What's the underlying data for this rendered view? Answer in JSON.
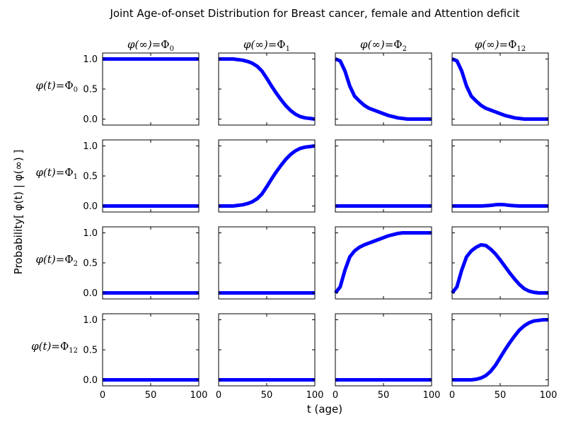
{
  "chart_data": {
    "type": "line",
    "title": "Joint Age-of-onset Distribution for Breast cancer, female and Attention deficit",
    "xlabel": "t (age)",
    "ylabel": "Probability[ φ(t) | φ(∞) ]",
    "xlim": [
      0,
      100
    ],
    "ylim": [
      -0.1,
      1.1
    ],
    "xticks": [
      "0",
      "50",
      "100"
    ],
    "yticks": [
      "0.0",
      "0.5",
      "1.0"
    ],
    "line_color": "#0000ff",
    "column_titles": [
      {
        "lhs": "φ(∞)=",
        "sym": "Φ",
        "sub": "0"
      },
      {
        "lhs": "φ(∞)=",
        "sym": "Φ",
        "sub": "1"
      },
      {
        "lhs": "φ(∞)=",
        "sym": "Φ",
        "sub": "2"
      },
      {
        "lhs": "φ(∞)=",
        "sym": "Φ",
        "sub": "12"
      }
    ],
    "row_titles": [
      {
        "lhs": "φ(t)=",
        "sym": "Φ",
        "sub": "0"
      },
      {
        "lhs": "φ(t)=",
        "sym": "Φ",
        "sub": "1"
      },
      {
        "lhs": "φ(t)=",
        "sym": "Φ",
        "sub": "2"
      },
      {
        "lhs": "φ(t)=",
        "sym": "Φ",
        "sub": "12"
      }
    ],
    "x": [
      0,
      5,
      10,
      15,
      20,
      25,
      30,
      35,
      40,
      45,
      50,
      55,
      60,
      65,
      70,
      75,
      80,
      85,
      90,
      95,
      100
    ],
    "panels": [
      [
        {
          "y": [
            1,
            1,
            1,
            1,
            1,
            1,
            1,
            1,
            1,
            1,
            1,
            1,
            1,
            1,
            1,
            1,
            1,
            1,
            1,
            1,
            1
          ]
        },
        {
          "y": [
            1,
            1,
            1,
            1,
            0.99,
            0.98,
            0.96,
            0.93,
            0.88,
            0.8,
            0.68,
            0.55,
            0.43,
            0.32,
            0.22,
            0.14,
            0.08,
            0.04,
            0.02,
            0.01,
            0
          ]
        },
        {
          "y": [
            1,
            0.97,
            0.8,
            0.55,
            0.38,
            0.3,
            0.23,
            0.18,
            0.15,
            0.12,
            0.09,
            0.06,
            0.04,
            0.02,
            0.01,
            0,
            0,
            0,
            0,
            0,
            0
          ]
        },
        {
          "y": [
            1,
            0.97,
            0.8,
            0.55,
            0.38,
            0.3,
            0.23,
            0.18,
            0.15,
            0.12,
            0.09,
            0.06,
            0.04,
            0.02,
            0.01,
            0,
            0,
            0,
            0,
            0,
            0
          ]
        }
      ],
      [
        {
          "y": [
            0,
            0,
            0,
            0,
            0,
            0,
            0,
            0,
            0,
            0,
            0,
            0,
            0,
            0,
            0,
            0,
            0,
            0,
            0,
            0,
            0
          ]
        },
        {
          "y": [
            0,
            0,
            0,
            0,
            0.01,
            0.02,
            0.04,
            0.07,
            0.12,
            0.2,
            0.32,
            0.45,
            0.57,
            0.68,
            0.78,
            0.86,
            0.92,
            0.96,
            0.98,
            0.99,
            1
          ]
        },
        {
          "y": [
            0,
            0,
            0,
            0,
            0,
            0,
            0,
            0,
            0,
            0,
            0,
            0,
            0,
            0,
            0,
            0,
            0,
            0,
            0,
            0,
            0
          ]
        },
        {
          "y": [
            0,
            0,
            0,
            0,
            0,
            0,
            0,
            0.005,
            0.01,
            0.02,
            0.025,
            0.02,
            0.01,
            0.005,
            0,
            0,
            0,
            0,
            0,
            0,
            0
          ]
        }
      ],
      [
        {
          "y": [
            0,
            0,
            0,
            0,
            0,
            0,
            0,
            0,
            0,
            0,
            0,
            0,
            0,
            0,
            0,
            0,
            0,
            0,
            0,
            0,
            0
          ]
        },
        {
          "y": [
            0,
            0,
            0,
            0,
            0,
            0,
            0,
            0,
            0,
            0,
            0,
            0,
            0,
            0,
            0,
            0,
            0,
            0,
            0,
            0,
            0
          ]
        },
        {
          "y": [
            0,
            0.1,
            0.38,
            0.6,
            0.7,
            0.76,
            0.8,
            0.83,
            0.86,
            0.89,
            0.92,
            0.95,
            0.97,
            0.99,
            1,
            1,
            1,
            1,
            1,
            1,
            1
          ]
        },
        {
          "y": [
            0,
            0.1,
            0.38,
            0.6,
            0.7,
            0.76,
            0.8,
            0.79,
            0.73,
            0.65,
            0.55,
            0.44,
            0.33,
            0.23,
            0.14,
            0.07,
            0.03,
            0.01,
            0,
            0,
            0
          ]
        }
      ],
      [
        {
          "y": [
            0,
            0,
            0,
            0,
            0,
            0,
            0,
            0,
            0,
            0,
            0,
            0,
            0,
            0,
            0,
            0,
            0,
            0,
            0,
            0,
            0
          ]
        },
        {
          "y": [
            0,
            0,
            0,
            0,
            0,
            0,
            0,
            0,
            0,
            0,
            0,
            0,
            0,
            0,
            0,
            0,
            0,
            0,
            0,
            0,
            0
          ]
        },
        {
          "y": [
            0,
            0,
            0,
            0,
            0,
            0,
            0,
            0,
            0,
            0,
            0,
            0,
            0,
            0,
            0,
            0,
            0,
            0,
            0,
            0,
            0
          ]
        },
        {
          "y": [
            0,
            0,
            0,
            0,
            0,
            0.01,
            0.03,
            0.07,
            0.14,
            0.24,
            0.37,
            0.5,
            0.62,
            0.73,
            0.83,
            0.9,
            0.95,
            0.98,
            0.99,
            1,
            1
          ]
        }
      ]
    ]
  }
}
